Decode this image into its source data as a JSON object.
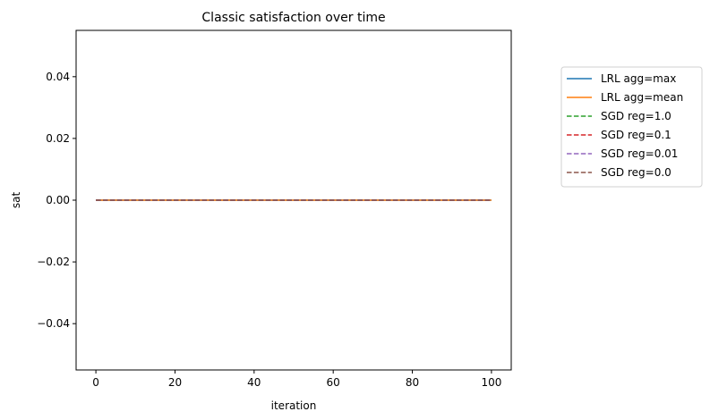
{
  "chart_data": {
    "type": "line",
    "title": "Classic satisfaction over time",
    "xlabel": "iteration",
    "ylabel": "sat",
    "xlim": [
      -5,
      105
    ],
    "ylim": [
      -0.055,
      0.055
    ],
    "xticks": [
      0,
      20,
      40,
      60,
      80,
      100
    ],
    "xtick_labels": [
      "0",
      "20",
      "40",
      "60",
      "80",
      "100"
    ],
    "yticks": [
      0.04,
      0.02,
      0.0,
      -0.02,
      -0.04
    ],
    "ytick_labels": [
      "0.04",
      "0.02",
      "0.00",
      "−0.02",
      "−0.04"
    ],
    "grid": false,
    "legend_position": "outside-right",
    "series": [
      {
        "name": "LRL agg=max",
        "color": "#1f77b4",
        "dash": "solid",
        "x": [
          0,
          100
        ],
        "y": [
          0,
          0
        ]
      },
      {
        "name": "LRL agg=mean",
        "color": "#ff7f0e",
        "dash": "solid",
        "x": [
          0,
          100
        ],
        "y": [
          0,
          0
        ]
      },
      {
        "name": "SGD reg=1.0",
        "color": "#2ca02c",
        "dash": "dashed",
        "x": [
          0,
          100
        ],
        "y": [
          0,
          0
        ]
      },
      {
        "name": "SGD reg=0.1",
        "color": "#d62728",
        "dash": "dashed",
        "x": [
          0,
          100
        ],
        "y": [
          0,
          0
        ]
      },
      {
        "name": "SGD reg=0.01",
        "color": "#9467bd",
        "dash": "dashed",
        "x": [
          0,
          100
        ],
        "y": [
          0,
          0
        ]
      },
      {
        "name": "SGD reg=0.0",
        "color": "#8c564b",
        "dash": "dashed",
        "x": [
          0,
          100
        ],
        "y": [
          0,
          0
        ]
      }
    ]
  }
}
